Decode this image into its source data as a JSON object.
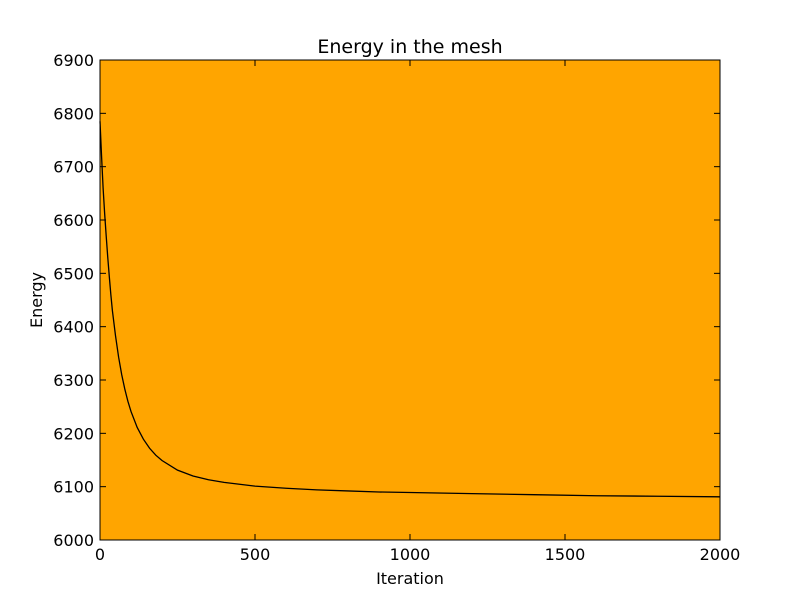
{
  "chart_data": {
    "type": "line",
    "title": "Energy in the mesh",
    "xlabel": "Iteration",
    "ylabel": "Energy",
    "xlim": [
      0,
      2000
    ],
    "ylim": [
      6000,
      6900
    ],
    "x_ticks": [
      0,
      500,
      1000,
      1500,
      2000
    ],
    "y_ticks": [
      6000,
      6100,
      6200,
      6300,
      6400,
      6500,
      6600,
      6700,
      6800,
      6900
    ],
    "x_tick_labels": [
      "0",
      "500",
      "1000",
      "1500",
      "2000"
    ],
    "y_tick_labels": [
      "6000",
      "6100",
      "6200",
      "6300",
      "6400",
      "6500",
      "6600",
      "6700",
      "6800",
      "6900"
    ],
    "grid": false,
    "colors": {
      "plot_background": "#ffa500",
      "line": "#000000"
    },
    "series": [
      {
        "x": [
          0,
          5,
          10,
          15,
          20,
          25,
          30,
          35,
          40,
          50,
          60,
          70,
          80,
          90,
          100,
          120,
          140,
          160,
          180,
          200,
          250,
          300,
          350,
          400,
          500,
          600,
          700,
          800,
          900,
          1000,
          1200,
          1400,
          1600,
          1800,
          2000
        ],
        "values": [
          6785,
          6720,
          6660,
          6612,
          6570,
          6530,
          6494,
          6460,
          6430,
          6383,
          6343,
          6310,
          6283,
          6260,
          6241,
          6211,
          6189,
          6172,
          6159,
          6149,
          6131,
          6120,
          6113,
          6108,
          6101,
          6097,
          6094,
          6092,
          6090,
          6089,
          6087,
          6085,
          6083,
          6082,
          6081
        ]
      }
    ]
  }
}
